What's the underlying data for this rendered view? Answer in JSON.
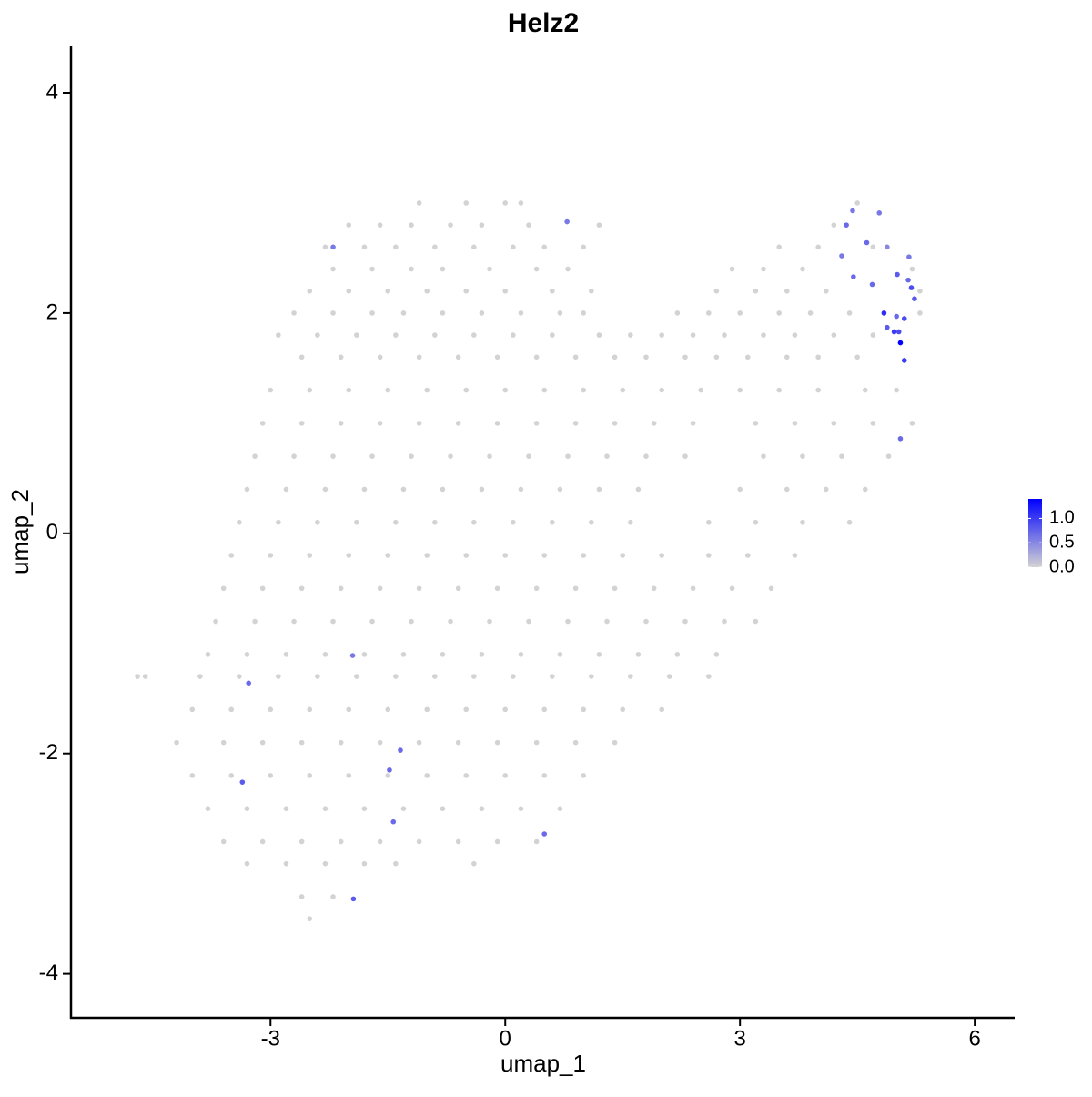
{
  "chart_data": {
    "type": "scatter",
    "title": "Helz2",
    "x_label": "umap_1",
    "y_label": "umap_2",
    "xlim": [
      -5.55,
      6.51
    ],
    "ylim": [
      -4.4,
      4.43
    ],
    "xticks": [
      -3,
      0,
      3,
      6
    ],
    "yticks": [
      -4,
      -2,
      0,
      2,
      4
    ],
    "colors": [
      "#D3D3D3",
      "#0000FF"
    ],
    "colorlim": [
      0,
      1.4
    ],
    "colorbar_ticks": [
      {
        "value": 0,
        "label": "0.0"
      },
      0.5,
      {
        "value": 1,
        "label": "1.0"
      }
    ],
    "x": [
      -1.1,
      -0.5,
      0.0,
      0.2,
      4.5,
      -2.0,
      -1.6,
      -1.2,
      -0.7,
      -0.3,
      0.3,
      1.2,
      4.2,
      -2.3,
      -1.8,
      -1.4,
      -0.9,
      -0.4,
      0.1,
      0.5,
      1.0,
      3.5,
      4.0,
      4.7,
      -2.2,
      -1.7,
      -1.2,
      -0.8,
      -0.2,
      0.4,
      0.8,
      2.9,
      3.3,
      3.8,
      5.2,
      -2.5,
      -2.0,
      -1.5,
      -1.0,
      -0.5,
      0.0,
      0.6,
      1.1,
      2.7,
      3.2,
      3.6,
      4.1,
      5.3,
      -2.7,
      -2.2,
      -1.7,
      -1.3,
      -0.8,
      -0.3,
      0.2,
      0.7,
      1.0,
      2.2,
      2.6,
      3.0,
      3.5,
      3.9,
      4.4,
      5.3,
      -2.9,
      -2.4,
      -1.9,
      -1.4,
      -0.9,
      -0.4,
      0.1,
      0.6,
      1.2,
      1.6,
      2.0,
      2.4,
      2.8,
      3.3,
      3.7,
      4.2,
      4.7,
      -2.6,
      -2.1,
      -1.6,
      -1.1,
      -0.6,
      -0.1,
      0.4,
      0.9,
      1.4,
      1.8,
      2.3,
      2.7,
      3.1,
      3.6,
      4.0,
      4.5,
      -3.0,
      -2.5,
      -2.0,
      -1.5,
      -1.0,
      -0.5,
      0.0,
      0.5,
      1.0,
      1.5,
      2.0,
      2.5,
      3.0,
      3.5,
      4.0,
      4.6,
      5.0,
      -3.1,
      -2.6,
      -2.1,
      -1.6,
      -1.1,
      -0.6,
      -0.1,
      0.4,
      0.9,
      1.4,
      1.9,
      2.4,
      3.2,
      3.7,
      4.2,
      4.7,
      5.2,
      -3.2,
      -2.7,
      -2.2,
      -1.7,
      -1.2,
      -0.7,
      -0.2,
      0.3,
      0.8,
      1.3,
      1.8,
      2.3,
      3.3,
      3.8,
      4.3,
      4.9,
      -3.3,
      -2.8,
      -2.3,
      -1.8,
      -1.3,
      -0.8,
      -0.3,
      0.2,
      0.7,
      1.2,
      1.7,
      3.0,
      3.6,
      4.1,
      4.6,
      -3.4,
      -2.9,
      -2.4,
      -1.9,
      -1.4,
      -0.9,
      -0.4,
      0.1,
      0.6,
      1.1,
      1.6,
      2.6,
      3.2,
      3.8,
      4.4,
      -3.5,
      -3.0,
      -2.5,
      -2.0,
      -1.5,
      -1.0,
      -0.5,
      0.0,
      0.5,
      1.0,
      1.5,
      2.0,
      2.6,
      3.1,
      3.7,
      -3.6,
      -3.1,
      -2.6,
      -2.1,
      -1.6,
      -1.1,
      -0.6,
      -0.1,
      0.4,
      0.9,
      1.4,
      1.9,
      2.4,
      2.9,
      3.4,
      -3.7,
      -3.2,
      -2.7,
      -2.2,
      -1.7,
      -1.2,
      -0.7,
      -0.2,
      0.3,
      0.8,
      1.3,
      1.8,
      2.3,
      2.8,
      3.2,
      -3.8,
      -3.3,
      -2.8,
      -2.3,
      -1.8,
      -1.3,
      -0.8,
      -0.3,
      0.2,
      0.7,
      1.2,
      1.7,
      2.2,
      2.7,
      -4.7,
      -4.6,
      -3.9,
      -3.4,
      -2.9,
      -2.4,
      -1.9,
      -1.4,
      -0.9,
      -0.4,
      0.1,
      0.6,
      1.1,
      1.6,
      2.1,
      2.6,
      -4.0,
      -3.5,
      -3.0,
      -2.5,
      -2.0,
      -1.5,
      -1.0,
      -0.5,
      0.0,
      0.5,
      1.0,
      1.5,
      2.0,
      -4.2,
      -3.6,
      -3.1,
      -2.6,
      -2.1,
      -1.6,
      -1.1,
      -0.6,
      -0.1,
      0.4,
      0.9,
      1.4,
      -4.0,
      -3.5,
      -3.0,
      -2.5,
      -2.0,
      -1.5,
      -1.0,
      -0.5,
      0.0,
      0.5,
      1.0,
      -3.8,
      -3.3,
      -2.8,
      -2.3,
      -1.8,
      -1.3,
      -0.8,
      -0.3,
      0.2,
      0.7,
      -3.6,
      -3.1,
      -2.6,
      -2.1,
      -1.6,
      -1.1,
      -0.6,
      -0.1,
      0.4,
      -3.3,
      -2.8,
      -2.3,
      -1.8,
      -1.4,
      -0.4,
      -2.6,
      -2.2,
      -2.5,
      -2.2,
      0.79,
      4.36,
      4.44,
      4.62,
      4.78,
      4.3,
      4.45,
      4.69,
      4.88,
      5.01,
      5.15,
      5.16,
      5.19,
      5.23,
      4.84,
      5.0,
      5.1,
      4.88,
      4.97,
      5.03,
      5.05,
      5.1,
      5.05,
      -1.95,
      -3.28,
      -1.34,
      -1.48,
      -3.36,
      -1.43,
      0.5,
      -1.94
    ],
    "y": [
      3.0,
      3.0,
      3.0,
      3.0,
      3.0,
      2.8,
      2.8,
      2.8,
      2.8,
      2.8,
      2.8,
      2.8,
      2.8,
      2.6,
      2.6,
      2.6,
      2.6,
      2.6,
      2.6,
      2.6,
      2.6,
      2.6,
      2.6,
      2.6,
      2.4,
      2.4,
      2.4,
      2.4,
      2.4,
      2.4,
      2.4,
      2.4,
      2.4,
      2.4,
      2.4,
      2.2,
      2.2,
      2.2,
      2.2,
      2.2,
      2.2,
      2.2,
      2.2,
      2.2,
      2.2,
      2.2,
      2.2,
      2.2,
      2.0,
      2.0,
      2.0,
      2.0,
      2.0,
      2.0,
      2.0,
      2.0,
      2.0,
      2.0,
      2.0,
      2.0,
      2.0,
      2.0,
      2.0,
      2.0,
      1.8,
      1.8,
      1.8,
      1.8,
      1.8,
      1.8,
      1.8,
      1.8,
      1.8,
      1.8,
      1.8,
      1.8,
      1.8,
      1.8,
      1.8,
      1.8,
      1.8,
      1.6,
      1.6,
      1.6,
      1.6,
      1.6,
      1.6,
      1.6,
      1.6,
      1.6,
      1.6,
      1.6,
      1.6,
      1.6,
      1.6,
      1.6,
      1.6,
      1.3,
      1.3,
      1.3,
      1.3,
      1.3,
      1.3,
      1.3,
      1.3,
      1.3,
      1.3,
      1.3,
      1.3,
      1.3,
      1.3,
      1.3,
      1.3,
      1.3,
      1.0,
      1.0,
      1.0,
      1.0,
      1.0,
      1.0,
      1.0,
      1.0,
      1.0,
      1.0,
      1.0,
      1.0,
      1.0,
      1.0,
      1.0,
      1.0,
      1.0,
      0.7,
      0.7,
      0.7,
      0.7,
      0.7,
      0.7,
      0.7,
      0.7,
      0.7,
      0.7,
      0.7,
      0.7,
      0.7,
      0.7,
      0.7,
      0.7,
      0.4,
      0.4,
      0.4,
      0.4,
      0.4,
      0.4,
      0.4,
      0.4,
      0.4,
      0.4,
      0.4,
      0.4,
      0.4,
      0.4,
      0.4,
      0.1,
      0.1,
      0.1,
      0.1,
      0.1,
      0.1,
      0.1,
      0.1,
      0.1,
      0.1,
      0.1,
      0.1,
      0.1,
      0.1,
      0.1,
      -0.2,
      -0.2,
      -0.2,
      -0.2,
      -0.2,
      -0.2,
      -0.2,
      -0.2,
      -0.2,
      -0.2,
      -0.2,
      -0.2,
      -0.2,
      -0.2,
      -0.2,
      -0.5,
      -0.5,
      -0.5,
      -0.5,
      -0.5,
      -0.5,
      -0.5,
      -0.5,
      -0.5,
      -0.5,
      -0.5,
      -0.5,
      -0.5,
      -0.5,
      -0.5,
      -0.8,
      -0.8,
      -0.8,
      -0.8,
      -0.8,
      -0.8,
      -0.8,
      -0.8,
      -0.8,
      -0.8,
      -0.8,
      -0.8,
      -0.8,
      -0.8,
      -0.8,
      -1.1,
      -1.1,
      -1.1,
      -1.1,
      -1.1,
      -1.1,
      -1.1,
      -1.1,
      -1.1,
      -1.1,
      -1.1,
      -1.1,
      -1.1,
      -1.1,
      -1.3,
      -1.3,
      -1.3,
      -1.3,
      -1.3,
      -1.3,
      -1.3,
      -1.3,
      -1.3,
      -1.3,
      -1.3,
      -1.3,
      -1.3,
      -1.3,
      -1.3,
      -1.3,
      -1.6,
      -1.6,
      -1.6,
      -1.6,
      -1.6,
      -1.6,
      -1.6,
      -1.6,
      -1.6,
      -1.6,
      -1.6,
      -1.6,
      -1.6,
      -1.9,
      -1.9,
      -1.9,
      -1.9,
      -1.9,
      -1.9,
      -1.9,
      -1.9,
      -1.9,
      -1.9,
      -1.9,
      -1.9,
      -2.2,
      -2.2,
      -2.2,
      -2.2,
      -2.2,
      -2.2,
      -2.2,
      -2.2,
      -2.2,
      -2.2,
      -2.2,
      -2.5,
      -2.5,
      -2.5,
      -2.5,
      -2.5,
      -2.5,
      -2.5,
      -2.5,
      -2.5,
      -2.5,
      -2.8,
      -2.8,
      -2.8,
      -2.8,
      -2.8,
      -2.8,
      -2.8,
      -2.8,
      -2.8,
      -3.0,
      -3.0,
      -3.0,
      -3.0,
      -3.0,
      -3.0,
      -3.3,
      -3.3,
      -3.5,
      2.6,
      2.83,
      2.8,
      2.93,
      2.64,
      2.91,
      2.52,
      2.33,
      2.26,
      2.6,
      2.35,
      2.3,
      2.51,
      2.23,
      2.13,
      2.0,
      1.97,
      1.95,
      1.87,
      1.83,
      1.83,
      1.73,
      1.57,
      0.86,
      -1.11,
      -1.36,
      -1.97,
      -2.15,
      -2.26,
      -2.62,
      -2.73,
      -3.32
    ],
    "values": [
      0,
      0,
      0,
      0,
      0,
      0,
      0,
      0,
      0,
      0,
      0,
      0,
      0,
      0,
      0,
      0,
      0,
      0,
      0,
      0,
      0,
      0,
      0,
      0,
      0,
      0,
      0,
      0,
      0,
      0,
      0,
      0,
      0,
      0,
      0,
      0,
      0,
      0,
      0,
      0,
      0,
      0,
      0,
      0,
      0,
      0,
      0,
      0,
      0,
      0,
      0,
      0,
      0,
      0,
      0,
      0,
      0,
      0,
      0,
      0,
      0,
      0,
      0,
      0,
      0,
      0,
      0,
      0,
      0,
      0,
      0,
      0,
      0,
      0,
      0,
      0,
      0,
      0,
      0,
      0,
      0,
      0,
      0,
      0,
      0,
      0,
      0,
      0,
      0,
      0,
      0,
      0,
      0,
      0,
      0,
      0,
      0,
      0,
      0,
      0,
      0,
      0,
      0,
      0,
      0,
      0,
      0,
      0,
      0,
      0,
      0,
      0,
      0,
      0,
      0,
      0,
      0,
      0,
      0,
      0,
      0,
      0,
      0,
      0,
      0,
      0,
      0,
      0,
      0,
      0,
      0,
      0,
      0,
      0,
      0,
      0,
      0,
      0,
      0,
      0,
      0,
      0,
      0,
      0,
      0,
      0,
      0,
      0,
      0,
      0,
      0,
      0,
      0,
      0,
      0,
      0,
      0,
      0,
      0,
      0,
      0,
      0,
      0,
      0,
      0,
      0,
      0,
      0,
      0,
      0,
      0,
      0,
      0,
      0,
      0,
      0,
      0,
      0,
      0,
      0,
      0,
      0,
      0,
      0,
      0,
      0,
      0,
      0,
      0,
      0,
      0,
      0,
      0,
      0,
      0,
      0,
      0,
      0,
      0,
      0,
      0,
      0,
      0,
      0,
      0,
      0,
      0,
      0,
      0,
      0,
      0,
      0,
      0,
      0,
      0,
      0,
      0,
      0,
      0,
      0,
      0,
      0,
      0,
      0,
      0,
      0,
      0,
      0,
      0,
      0,
      0,
      0,
      0,
      0,
      0,
      0,
      0,
      0,
      0,
      0,
      0,
      0,
      0,
      0,
      0,
      0,
      0,
      0,
      0,
      0,
      0,
      0,
      0,
      0,
      0,
      0,
      0,
      0,
      0,
      0,
      0,
      0,
      0,
      0,
      0,
      0,
      0,
      0,
      0,
      0,
      0,
      0,
      0,
      0,
      0,
      0,
      0,
      0,
      0,
      0,
      0,
      0,
      0,
      0,
      0,
      0,
      0,
      0,
      0,
      0,
      0,
      0,
      0,
      0,
      0,
      0,
      0,
      0,
      0,
      0,
      0,
      0,
      0,
      0,
      0,
      0,
      0,
      0,
      0,
      0,
      0,
      0,
      0,
      0,
      0,
      0,
      0.6,
      0.6,
      0.7,
      0.6,
      0.7,
      0.6,
      0.6,
      0.7,
      0.7,
      0.5,
      0.8,
      0.7,
      0.6,
      0.9,
      0.8,
      1.1,
      0.7,
      0.9,
      0.8,
      1.0,
      0.9,
      1.4,
      1.0,
      0.7,
      0.6,
      0.7,
      0.7,
      0.7,
      0.8,
      0.7,
      0.7,
      0.8
    ]
  }
}
